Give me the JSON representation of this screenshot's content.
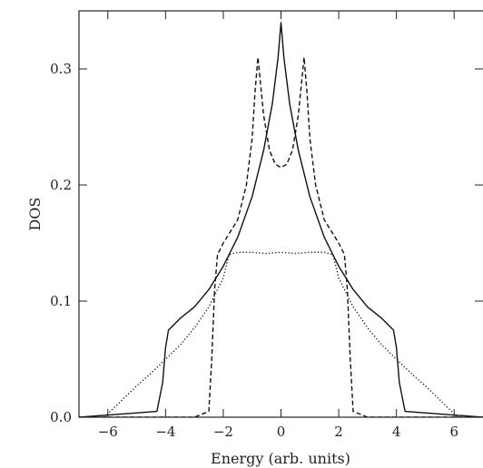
{
  "chart_data": {
    "type": "line",
    "title": "",
    "xlabel": "Energy (arb. units)",
    "ylabel": "DOS",
    "xlim": [
      -7,
      7
    ],
    "ylim": [
      0,
      0.35
    ],
    "xticks": [
      -6,
      -4,
      -2,
      0,
      2,
      4,
      6
    ],
    "yticks": [
      0.0,
      0.1,
      0.2,
      0.3
    ],
    "xtick_labels": [
      "−6",
      "−4",
      "−2",
      "0",
      "2",
      "4",
      "6"
    ],
    "ytick_labels": [
      "0.0",
      "0.1",
      "0.2",
      "0.3"
    ],
    "grid": false,
    "legend": "none",
    "series": [
      {
        "style": "solid",
        "x": [
          -7,
          -4.3,
          -4.1,
          -4.0,
          -3.9,
          -3.5,
          -3.0,
          -2.5,
          -2.0,
          -1.5,
          -1.0,
          -0.6,
          -0.3,
          -0.1,
          0,
          0.1,
          0.3,
          0.6,
          1.0,
          1.5,
          2.0,
          2.5,
          3.0,
          3.5,
          3.9,
          4.0,
          4.1,
          4.3,
          7
        ],
        "y": [
          0,
          0.005,
          0.03,
          0.06,
          0.075,
          0.085,
          0.095,
          0.11,
          0.13,
          0.155,
          0.19,
          0.23,
          0.27,
          0.31,
          0.34,
          0.31,
          0.27,
          0.23,
          0.19,
          0.155,
          0.13,
          0.11,
          0.095,
          0.085,
          0.075,
          0.06,
          0.03,
          0.005,
          0
        ]
      },
      {
        "style": "dashed",
        "x": [
          -7,
          -3.0,
          -2.5,
          -2.4,
          -2.3,
          -2.2,
          -2.0,
          -1.5,
          -1.2,
          -1.0,
          -0.9,
          -0.8,
          -0.6,
          -0.4,
          -0.2,
          0,
          0.2,
          0.4,
          0.6,
          0.8,
          0.9,
          1.0,
          1.2,
          1.5,
          2.0,
          2.2,
          2.3,
          2.4,
          2.5,
          3.0,
          7
        ],
        "y": [
          0,
          0.0,
          0.005,
          0.05,
          0.11,
          0.14,
          0.15,
          0.17,
          0.2,
          0.24,
          0.28,
          0.31,
          0.26,
          0.23,
          0.218,
          0.215,
          0.218,
          0.23,
          0.26,
          0.31,
          0.28,
          0.24,
          0.2,
          0.17,
          0.15,
          0.14,
          0.11,
          0.05,
          0.005,
          0.0,
          0
        ]
      },
      {
        "style": "dotted",
        "x": [
          -7,
          -6.1,
          -6.0,
          -5.5,
          -5.0,
          -4.5,
          -4.0,
          -3.5,
          -3.0,
          -2.5,
          -2.0,
          -1.8,
          -1.5,
          -1.0,
          -0.5,
          0,
          0.5,
          1.0,
          1.5,
          1.8,
          2.0,
          2.5,
          3.0,
          3.5,
          4.0,
          4.5,
          5.0,
          5.5,
          6.0,
          6.1,
          7
        ],
        "y": [
          0,
          0,
          0.003,
          0.015,
          0.027,
          0.038,
          0.05,
          0.062,
          0.077,
          0.095,
          0.12,
          0.14,
          0.142,
          0.142,
          0.141,
          0.142,
          0.141,
          0.142,
          0.142,
          0.14,
          0.12,
          0.095,
          0.077,
          0.062,
          0.05,
          0.038,
          0.027,
          0.015,
          0.003,
          0,
          0
        ]
      }
    ]
  }
}
